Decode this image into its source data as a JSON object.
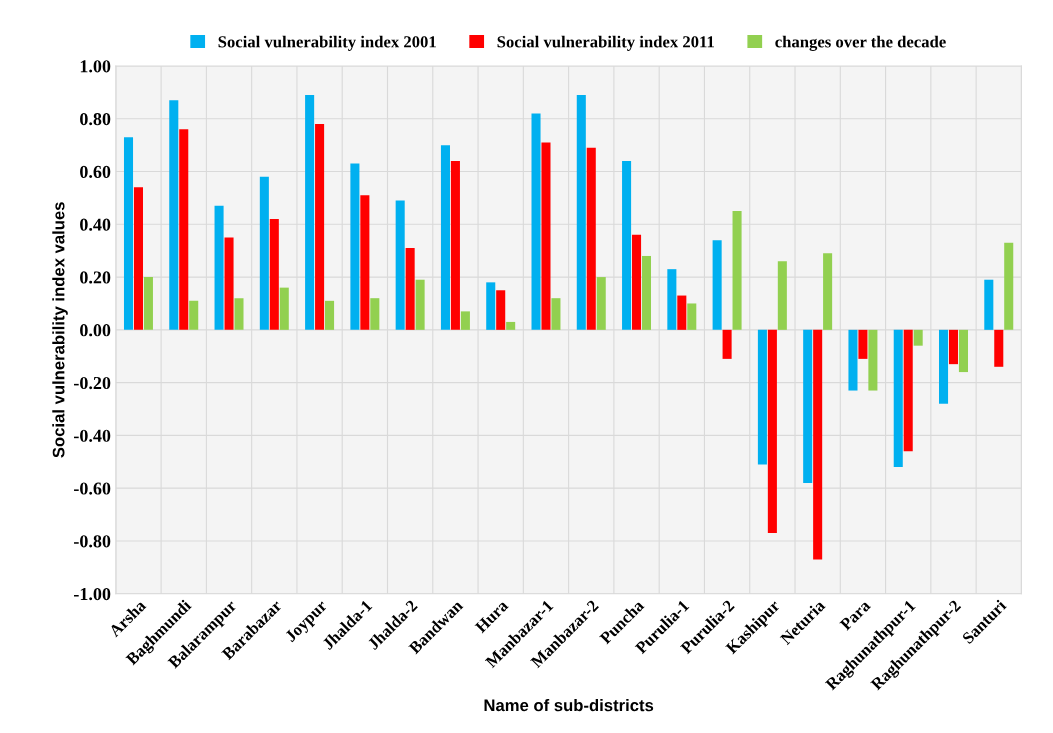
{
  "chart_data": {
    "type": "bar",
    "xlabel": "Name of sub-districts",
    "ylabel": "Social vulnerability index values",
    "categories": [
      "Arsha",
      "Baghmundi",
      "Balarampur",
      "Barabazar",
      "Joypur",
      "Jhalda-1",
      "Jhalda-2",
      "Bandwan",
      "Hura",
      "Manbazar-1",
      "Manbazar-2",
      "Puncha",
      "Purulia-1",
      "Purulia-2",
      "Kashipur",
      "Neturia",
      "Para",
      "Raghunathpur-1",
      "Raghunathpur-2",
      "Santuri"
    ],
    "series": [
      {
        "name": "Social vulnerability index 2001",
        "color": "#00b0f0",
        "values": [
          0.73,
          0.87,
          0.47,
          0.58,
          0.89,
          0.63,
          0.49,
          0.7,
          0.18,
          0.82,
          0.89,
          0.64,
          0.23,
          0.34,
          -0.51,
          -0.58,
          -0.23,
          -0.52,
          -0.28,
          0.19
        ]
      },
      {
        "name": "Social vulnerability index 2011",
        "color": "#ff0000",
        "values": [
          0.54,
          0.76,
          0.35,
          0.42,
          0.78,
          0.51,
          0.31,
          0.64,
          0.15,
          0.71,
          0.69,
          0.36,
          0.13,
          -0.11,
          -0.77,
          -0.87,
          -0.11,
          -0.46,
          -0.13,
          -0.14
        ]
      },
      {
        "name": "changes over the decade",
        "color": "#92d050",
        "values": [
          0.2,
          0.11,
          0.12,
          0.16,
          0.11,
          0.12,
          0.19,
          0.07,
          0.03,
          0.12,
          0.2,
          0.28,
          0.1,
          0.45,
          0.26,
          0.29,
          -0.23,
          -0.06,
          -0.16,
          0.33
        ]
      }
    ],
    "ylim": [
      -1.0,
      1.0
    ],
    "yticks": [
      {
        "value": -1.0,
        "label": "-1.00"
      },
      {
        "value": -0.8,
        "label": "-0.80"
      },
      {
        "value": -0.6,
        "label": "-0.60"
      },
      {
        "value": -0.4,
        "label": "-0.40"
      },
      {
        "value": -0.2,
        "label": "-0.20"
      },
      {
        "value": 0.0,
        "label": "0.00"
      },
      {
        "value": 0.2,
        "label": "0.20"
      },
      {
        "value": 0.4,
        "label": "0.40"
      },
      {
        "value": 0.6,
        "label": "0.60"
      },
      {
        "value": 0.8,
        "label": "0.80"
      },
      {
        "value": 1.0,
        "label": "1.00"
      }
    ],
    "grid": true,
    "legend": "top"
  }
}
